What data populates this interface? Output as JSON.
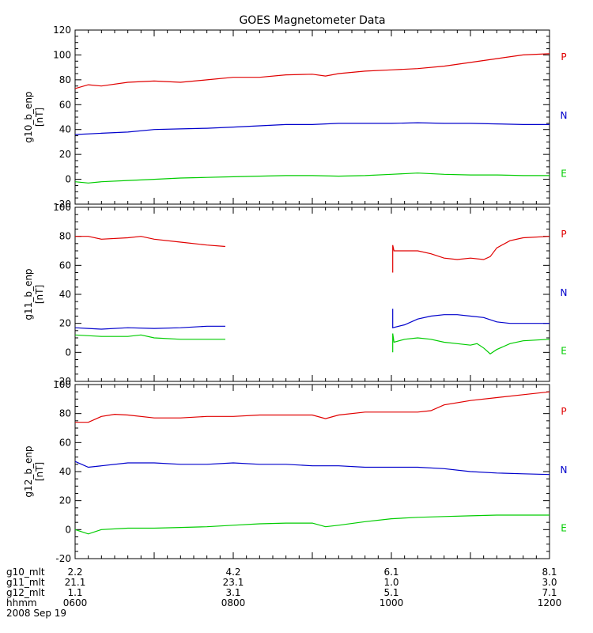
{
  "title": "GOES Magnetometer Data",
  "colors": {
    "P": "#e00000",
    "N": "#0000cc",
    "E": "#00cc00",
    "axis": "#000000"
  },
  "chart_data": {
    "type": "line",
    "title": "GOES Magnetometer Data",
    "x_axis": {
      "unit": "hhmm",
      "range": [
        "0600",
        "1200"
      ],
      "major_ticks": [
        "0600",
        "0800",
        "1000",
        "1200"
      ]
    },
    "panels": [
      {
        "ylabel": "g10_b_enp",
        "yunit": "[nT]",
        "ylim": [
          -20,
          120
        ],
        "ytick_labels": [
          "-20",
          "0",
          "20",
          "40",
          "60",
          "80",
          "100",
          "120"
        ],
        "series": [
          {
            "name": "P",
            "color": "#e00000",
            "points": [
              [
                "06:00",
                73
              ],
              [
                "06:10",
                76
              ],
              [
                "06:20",
                75
              ],
              [
                "06:40",
                78
              ],
              [
                "07:00",
                79
              ],
              [
                "07:20",
                78
              ],
              [
                "07:40",
                80
              ],
              [
                "08:00",
                82
              ],
              [
                "08:20",
                82
              ],
              [
                "08:40",
                84
              ],
              [
                "09:00",
                84.5
              ],
              [
                "09:10",
                83
              ],
              [
                "09:20",
                85
              ],
              [
                "09:40",
                87
              ],
              [
                "10:00",
                88
              ],
              [
                "10:20",
                89
              ],
              [
                "10:40",
                91
              ],
              [
                "11:00",
                94
              ],
              [
                "11:20",
                97
              ],
              [
                "11:40",
                100
              ],
              [
                "12:00",
                101
              ]
            ]
          },
          {
            "name": "N",
            "color": "#0000cc",
            "points": [
              [
                "06:00",
                36
              ],
              [
                "06:20",
                37
              ],
              [
                "06:40",
                38
              ],
              [
                "07:00",
                40
              ],
              [
                "07:20",
                40.5
              ],
              [
                "07:40",
                41
              ],
              [
                "08:00",
                42
              ],
              [
                "08:20",
                43
              ],
              [
                "08:40",
                44
              ],
              [
                "09:00",
                44
              ],
              [
                "09:20",
                45
              ],
              [
                "09:40",
                45
              ],
              [
                "10:00",
                45
              ],
              [
                "10:20",
                45.5
              ],
              [
                "10:40",
                45
              ],
              [
                "11:00",
                45
              ],
              [
                "11:20",
                44.5
              ],
              [
                "11:40",
                44
              ],
              [
                "12:00",
                44
              ]
            ]
          },
          {
            "name": "E",
            "color": "#00cc00",
            "points": [
              [
                "06:00",
                -2
              ],
              [
                "06:10",
                -3
              ],
              [
                "06:20",
                -2
              ],
              [
                "06:40",
                -1
              ],
              [
                "07:00",
                0
              ],
              [
                "07:20",
                1
              ],
              [
                "07:40",
                1.5
              ],
              [
                "08:00",
                2
              ],
              [
                "08:20",
                2.5
              ],
              [
                "08:40",
                3
              ],
              [
                "09:00",
                3
              ],
              [
                "09:20",
                2.5
              ],
              [
                "09:40",
                3
              ],
              [
                "10:00",
                4
              ],
              [
                "10:20",
                5
              ],
              [
                "10:40",
                4
              ],
              [
                "11:00",
                3.5
              ],
              [
                "11:20",
                3.5
              ],
              [
                "11:40",
                3
              ],
              [
                "12:00",
                3
              ]
            ]
          }
        ]
      },
      {
        "ylabel": "g11_b_enp",
        "yunit": "[nT]",
        "ylim": [
          -20,
          100
        ],
        "ytick_labels": [
          "-20",
          "0",
          "20",
          "40",
          "60",
          "80",
          "100"
        ],
        "series": [
          {
            "name": "P",
            "color": "#e00000",
            "segments": [
              [
                [
                  "06:00",
                  80
                ],
                [
                  "06:10",
                  80
                ],
                [
                  "06:20",
                  78
                ],
                [
                  "06:40",
                  79
                ],
                [
                  "06:50",
                  80
                ],
                [
                  "07:00",
                  78
                ],
                [
                  "07:20",
                  76
                ],
                [
                  "07:40",
                  74
                ],
                [
                  "07:54",
                  73
                ]
              ],
              [
                [
                  "10:01",
                  55
                ],
                [
                  "10:01",
                  74
                ],
                [
                  "10:02",
                  70
                ],
                [
                  "10:20",
                  70
                ],
                [
                  "10:30",
                  68
                ],
                [
                  "10:40",
                  65
                ],
                [
                  "10:50",
                  64
                ],
                [
                  "11:00",
                  65
                ],
                [
                  "11:10",
                  64
                ],
                [
                  "11:15",
                  66
                ],
                [
                  "11:20",
                  72
                ],
                [
                  "11:30",
                  77
                ],
                [
                  "11:40",
                  79
                ],
                [
                  "12:00",
                  80
                ]
              ]
            ]
          },
          {
            "name": "N",
            "color": "#0000cc",
            "segments": [
              [
                [
                  "06:00",
                  17
                ],
                [
                  "06:10",
                  16.5
                ],
                [
                  "06:20",
                  16
                ],
                [
                  "06:40",
                  17
                ],
                [
                  "07:00",
                  16.5
                ],
                [
                  "07:20",
                  17
                ],
                [
                  "07:40",
                  18
                ],
                [
                  "07:54",
                  18
                ]
              ],
              [
                [
                  "10:01",
                  30
                ],
                [
                  "10:01",
                  17
                ],
                [
                  "10:10",
                  19
                ],
                [
                  "10:20",
                  23
                ],
                [
                  "10:30",
                  25
                ],
                [
                  "10:40",
                  26
                ],
                [
                  "10:50",
                  26
                ],
                [
                  "11:00",
                  25
                ],
                [
                  "11:10",
                  24
                ],
                [
                  "11:20",
                  21
                ],
                [
                  "11:30",
                  20
                ],
                [
                  "12:00",
                  20
                ]
              ]
            ]
          },
          {
            "name": "E",
            "color": "#00cc00",
            "segments": [
              [
                [
                  "06:00",
                  12
                ],
                [
                  "06:20",
                  11
                ],
                [
                  "06:40",
                  11
                ],
                [
                  "06:50",
                  12
                ],
                [
                  "07:00",
                  10
                ],
                [
                  "07:20",
                  9
                ],
                [
                  "07:40",
                  9
                ],
                [
                  "07:54",
                  9
                ]
              ],
              [
                [
                  "10:01",
                  0
                ],
                [
                  "10:01",
                  13
                ],
                [
                  "10:02",
                  7
                ],
                [
                  "10:10",
                  9
                ],
                [
                  "10:20",
                  10
                ],
                [
                  "10:30",
                  9
                ],
                [
                  "10:40",
                  7
                ],
                [
                  "10:50",
                  6
                ],
                [
                  "11:00",
                  5
                ],
                [
                  "11:05",
                  6
                ],
                [
                  "11:10",
                  3
                ],
                [
                  "11:15",
                  -1
                ],
                [
                  "11:20",
                  2
                ],
                [
                  "11:30",
                  6
                ],
                [
                  "11:40",
                  8
                ],
                [
                  "12:00",
                  9
                ]
              ]
            ]
          }
        ]
      },
      {
        "ylabel": "g12_b_enp",
        "yunit": "[nT]",
        "ylim": [
          -20,
          100
        ],
        "ytick_labels": [
          "-20",
          "0",
          "20",
          "40",
          "60",
          "80",
          "100"
        ],
        "series": [
          {
            "name": "P",
            "color": "#e00000",
            "points": [
              [
                "06:00",
                74
              ],
              [
                "06:10",
                74
              ],
              [
                "06:20",
                78
              ],
              [
                "06:30",
                79.5
              ],
              [
                "06:40",
                79
              ],
              [
                "07:00",
                77
              ],
              [
                "07:20",
                77
              ],
              [
                "07:40",
                78
              ],
              [
                "08:00",
                78
              ],
              [
                "08:20",
                79
              ],
              [
                "08:40",
                79
              ],
              [
                "09:00",
                79
              ],
              [
                "09:10",
                76.5
              ],
              [
                "09:20",
                79
              ],
              [
                "09:40",
                81
              ],
              [
                "10:00",
                81
              ],
              [
                "10:20",
                81
              ],
              [
                "10:30",
                82
              ],
              [
                "10:40",
                86
              ],
              [
                "11:00",
                89
              ],
              [
                "11:20",
                91
              ],
              [
                "11:40",
                93
              ],
              [
                "12:00",
                95
              ]
            ]
          },
          {
            "name": "N",
            "color": "#0000cc",
            "points": [
              [
                "06:00",
                47
              ],
              [
                "06:10",
                43
              ],
              [
                "06:20",
                44
              ],
              [
                "06:40",
                46
              ],
              [
                "07:00",
                46
              ],
              [
                "07:20",
                45
              ],
              [
                "07:40",
                45
              ],
              [
                "08:00",
                46
              ],
              [
                "08:20",
                45
              ],
              [
                "08:40",
                45
              ],
              [
                "09:00",
                44
              ],
              [
                "09:20",
                44
              ],
              [
                "09:40",
                43
              ],
              [
                "10:00",
                43
              ],
              [
                "10:20",
                43
              ],
              [
                "10:40",
                42
              ],
              [
                "11:00",
                40
              ],
              [
                "11:20",
                39
              ],
              [
                "11:40",
                38.5
              ],
              [
                "12:00",
                38
              ]
            ]
          },
          {
            "name": "E",
            "color": "#00cc00",
            "points": [
              [
                "06:00",
                0
              ],
              [
                "06:10",
                -3
              ],
              [
                "06:20",
                0
              ],
              [
                "06:40",
                1
              ],
              [
                "07:00",
                1
              ],
              [
                "07:20",
                1.5
              ],
              [
                "07:40",
                2
              ],
              [
                "08:00",
                3
              ],
              [
                "08:20",
                4
              ],
              [
                "08:40",
                4.5
              ],
              [
                "09:00",
                4.5
              ],
              [
                "09:10",
                2
              ],
              [
                "09:20",
                3
              ],
              [
                "09:40",
                5.5
              ],
              [
                "10:00",
                7.5
              ],
              [
                "10:20",
                8.5
              ],
              [
                "10:40",
                9
              ],
              [
                "11:00",
                9.5
              ],
              [
                "11:20",
                10
              ],
              [
                "11:40",
                10
              ],
              [
                "12:00",
                10
              ]
            ]
          }
        ]
      }
    ]
  },
  "footer": {
    "rows": [
      {
        "label": "g10_mlt",
        "values": [
          "2.2",
          "4.2",
          "6.1",
          "8.1"
        ]
      },
      {
        "label": "g11_mlt",
        "values": [
          "21.1",
          "23.1",
          "1.0",
          "3.0"
        ]
      },
      {
        "label": "g12_mlt",
        "values": [
          "1.1",
          "3.1",
          "5.1",
          "7.1"
        ]
      },
      {
        "label": "hhmm",
        "values": [
          "0600",
          "0800",
          "1000",
          "1200"
        ]
      }
    ],
    "date": "2008 Sep 19"
  }
}
